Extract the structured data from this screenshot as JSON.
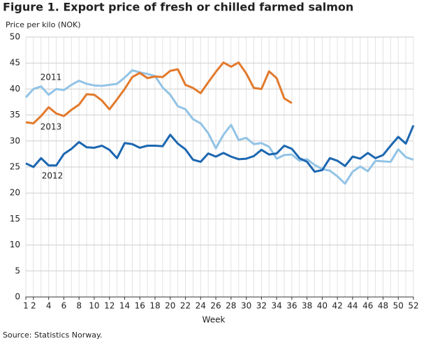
{
  "chart_data": {
    "type": "line",
    "title": "Figure 1. Export price of fresh or chilled farmed salmon",
    "y_label": "Price per kilo (NOK)",
    "x_label": "Week",
    "source": "Source: Statistics Norway.",
    "x": [
      1,
      2,
      3,
      4,
      5,
      6,
      7,
      8,
      9,
      10,
      11,
      12,
      13,
      14,
      15,
      16,
      17,
      18,
      19,
      20,
      21,
      22,
      23,
      24,
      25,
      26,
      27,
      28,
      29,
      30,
      31,
      32,
      33,
      34,
      35,
      36,
      37,
      38,
      39,
      40,
      41,
      42,
      43,
      44,
      45,
      46,
      47,
      48,
      49,
      50,
      51,
      52
    ],
    "xlim": [
      1,
      52
    ],
    "xticks": [
      1,
      2,
      4,
      6,
      8,
      10,
      12,
      14,
      16,
      18,
      20,
      22,
      24,
      26,
      28,
      30,
      32,
      34,
      36,
      38,
      40,
      42,
      44,
      46,
      48,
      50,
      52
    ],
    "ylim": [
      0,
      50
    ],
    "yticks": [
      0,
      5,
      10,
      15,
      20,
      25,
      30,
      35,
      40,
      45,
      50
    ],
    "grid": true,
    "series": [
      {
        "name": "2011",
        "color": "#92c3e6",
        "values": [
          38.4,
          40.0,
          40.5,
          38.9,
          40.0,
          39.8,
          40.8,
          41.6,
          41.0,
          40.7,
          40.6,
          40.8,
          41.0,
          42.2,
          43.6,
          43.2,
          42.9,
          42.5,
          40.3,
          38.9,
          36.7,
          36.1,
          34.2,
          33.4,
          31.5,
          28.6,
          31.2,
          33.1,
          30.2,
          30.6,
          29.4,
          29.6,
          28.9,
          26.6,
          27.3,
          27.4,
          26.2,
          26.5,
          25.4,
          24.6,
          24.3,
          23.2,
          21.8,
          24.1,
          25.1,
          24.2,
          26.2,
          26.1,
          26.0,
          28.4,
          26.9,
          26.4
        ]
      },
      {
        "name": "2012",
        "color": "#1c67b1",
        "values": [
          25.7,
          25.0,
          26.7,
          25.3,
          25.3,
          27.5,
          28.5,
          29.8,
          28.8,
          28.7,
          29.1,
          28.3,
          26.7,
          29.6,
          29.4,
          28.7,
          29.1,
          29.1,
          29.0,
          31.2,
          29.5,
          28.4,
          26.4,
          26.0,
          27.6,
          27.0,
          27.7,
          27.0,
          26.5,
          26.6,
          27.1,
          28.3,
          27.4,
          27.6,
          29.1,
          28.5,
          26.7,
          26.0,
          24.1,
          24.4,
          26.7,
          26.2,
          25.2,
          27.0,
          26.6,
          27.7,
          26.7,
          27.3,
          29.1,
          30.8,
          29.5,
          33.0
        ]
      },
      {
        "name": "2013",
        "color": "#e27a2c",
        "values": [
          33.6,
          33.4,
          34.8,
          36.5,
          35.3,
          34.8,
          36.0,
          37.0,
          39.0,
          38.9,
          37.8,
          36.1,
          38.0,
          40.0,
          42.3,
          43.1,
          42.1,
          42.4,
          42.3,
          43.5,
          43.8,
          40.8,
          40.2,
          39.2,
          41.3,
          43.3,
          45.1,
          44.3,
          45.1,
          43.0,
          40.2,
          40.0,
          43.4,
          42.1,
          38.2,
          37.3,
          null,
          null,
          null,
          null,
          null,
          null,
          null,
          null,
          null,
          null,
          null,
          null,
          null,
          null,
          null,
          null
        ]
      }
    ]
  }
}
